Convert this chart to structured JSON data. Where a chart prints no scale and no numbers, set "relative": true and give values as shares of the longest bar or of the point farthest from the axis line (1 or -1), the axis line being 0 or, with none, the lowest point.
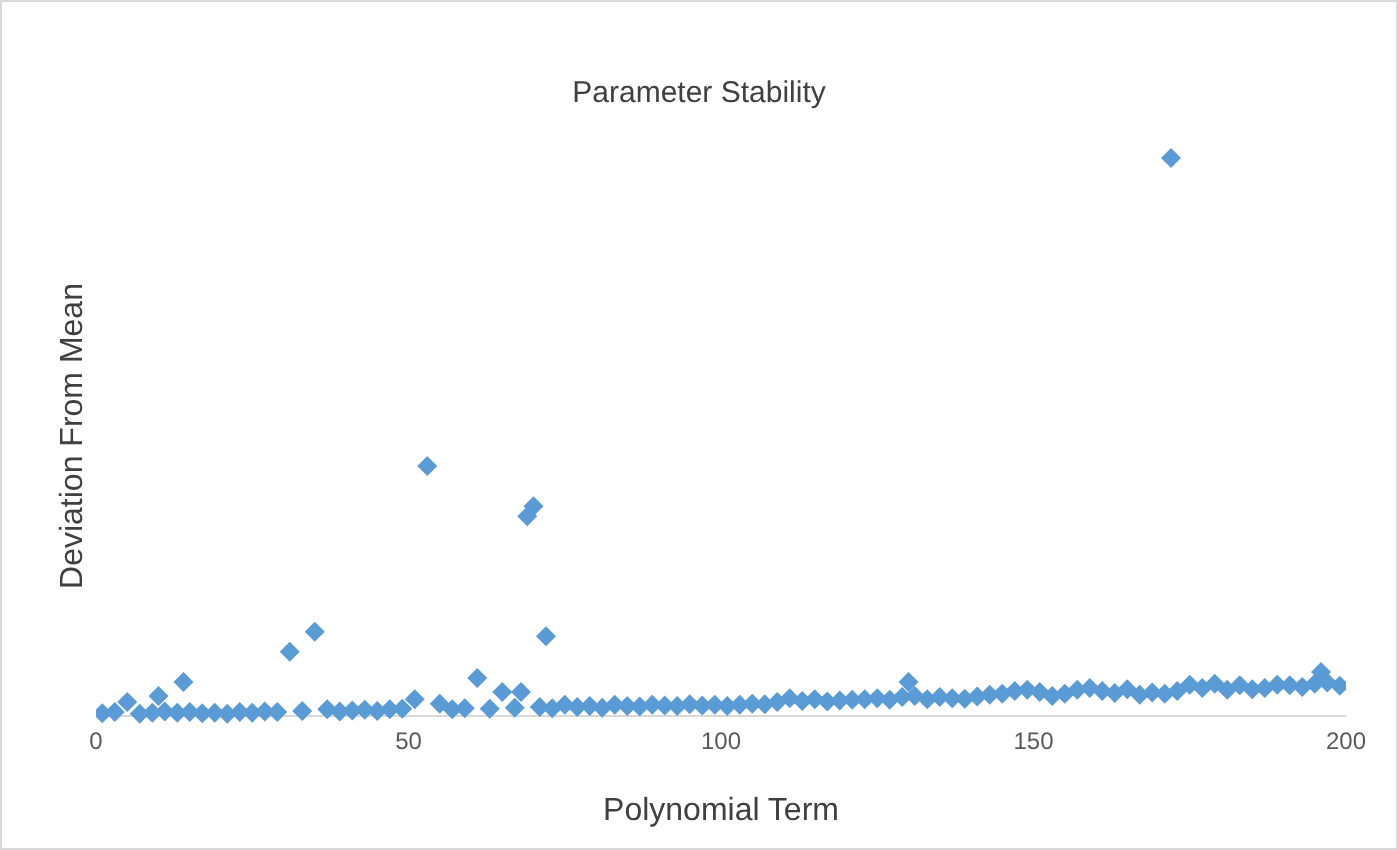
{
  "chart_data": {
    "type": "scatter",
    "title": "Parameter Stability",
    "xlabel": "Polynomial Term",
    "ylabel": "Deviation From Mean",
    "relative": true,
    "marker": "diamond",
    "grid": false,
    "legend": false,
    "xlim": [
      0,
      200
    ],
    "xticks": [
      0,
      50,
      100,
      150,
      200
    ],
    "series": [
      {
        "color": "#5b9bd5",
        "x": [
          1,
          3,
          5,
          7,
          9,
          10,
          11,
          13,
          14,
          15,
          17,
          19,
          21,
          23,
          25,
          27,
          29,
          31,
          33,
          35,
          37,
          39,
          41,
          43,
          45,
          47,
          49,
          51,
          53,
          55,
          57,
          59,
          61,
          63,
          65,
          67,
          68,
          69,
          70,
          71,
          72,
          73,
          75,
          77,
          79,
          81,
          83,
          85,
          87,
          89,
          91,
          93,
          95,
          97,
          99,
          101,
          103,
          105,
          107,
          109,
          111,
          113,
          115,
          117,
          119,
          121,
          123,
          125,
          127,
          129,
          130,
          131,
          133,
          135,
          137,
          139,
          141,
          143,
          145,
          147,
          149,
          151,
          153,
          155,
          157,
          159,
          161,
          163,
          165,
          167,
          169,
          171,
          172,
          173,
          175,
          177,
          179,
          181,
          183,
          185,
          187,
          189,
          191,
          193,
          195,
          196,
          197,
          199
        ],
        "values": [
          0.005,
          0.007,
          0.025,
          0.004,
          0.006,
          0.036,
          0.008,
          0.006,
          0.061,
          0.007,
          0.005,
          0.006,
          0.004,
          0.007,
          0.006,
          0.008,
          0.007,
          0.115,
          0.009,
          0.151,
          0.012,
          0.008,
          0.01,
          0.011,
          0.009,
          0.012,
          0.013,
          0.03,
          0.448,
          0.022,
          0.012,
          0.014,
          0.068,
          0.013,
          0.043,
          0.015,
          0.043,
          0.358,
          0.376,
          0.016,
          0.143,
          0.014,
          0.02,
          0.016,
          0.018,
          0.015,
          0.02,
          0.018,
          0.017,
          0.02,
          0.019,
          0.018,
          0.021,
          0.019,
          0.02,
          0.018,
          0.02,
          0.022,
          0.021,
          0.025,
          0.032,
          0.027,
          0.03,
          0.026,
          0.028,
          0.029,
          0.03,
          0.032,
          0.029,
          0.034,
          0.061,
          0.036,
          0.03,
          0.034,
          0.032,
          0.031,
          0.035,
          0.038,
          0.04,
          0.045,
          0.047,
          0.043,
          0.036,
          0.04,
          0.047,
          0.05,
          0.045,
          0.041,
          0.048,
          0.038,
          0.042,
          0.04,
          1,
          0.045,
          0.056,
          0.05,
          0.058,
          0.047,
          0.055,
          0.048,
          0.05,
          0.056,
          0.055,
          0.052,
          0.058,
          0.079,
          0.06,
          0.054
        ]
      }
    ]
  }
}
